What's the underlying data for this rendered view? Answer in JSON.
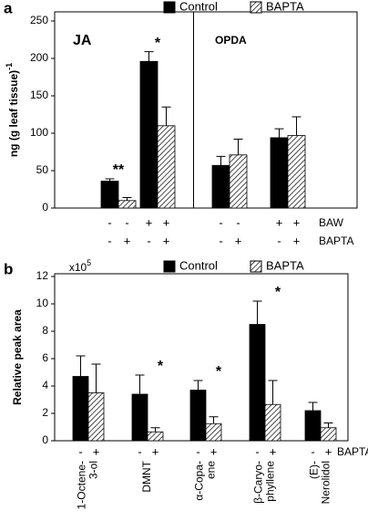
{
  "chart_data": [
    {
      "type": "bar",
      "panel_label": "a",
      "y_label": "ng (g leaf tissue)",
      "y_label_sup": "-1",
      "ylim": [
        0,
        250
      ],
      "yticks": [
        0,
        50,
        100,
        150,
        200,
        250
      ],
      "sections": [
        {
          "title": "JA",
          "groups": [
            0,
            1
          ]
        },
        {
          "title": "OPDA",
          "groups": [
            2,
            3
          ]
        }
      ],
      "series": [
        {
          "name": "Control",
          "pattern": "solid",
          "color": "#000000",
          "values": [
            36,
            196,
            57,
            94
          ],
          "errors": [
            3,
            13,
            12,
            12
          ]
        },
        {
          "name": "BAPTA",
          "pattern": "hatch",
          "color": "#000000",
          "values": [
            10,
            110,
            71,
            97
          ],
          "errors": [
            4,
            25,
            21,
            25
          ]
        }
      ],
      "annotations": [
        {
          "text": "**",
          "group": 0
        },
        {
          "text": "*",
          "group": 1
        }
      ],
      "factor_rows": [
        {
          "name": "BAW",
          "signs": [
            "-",
            "-",
            "+",
            "+",
            "-",
            "-",
            "+",
            "+"
          ]
        },
        {
          "name": "BAPTA",
          "signs": [
            "-",
            "+",
            "-",
            "+",
            "-",
            "+",
            "-",
            "+"
          ]
        }
      ]
    },
    {
      "type": "bar",
      "panel_label": "b",
      "y_label": "Relative peak area",
      "multiplier": "x10",
      "multiplier_sup": "5",
      "ylim": [
        0,
        12
      ],
      "yticks": [
        0,
        2,
        4,
        6,
        8,
        10,
        12
      ],
      "categories": [
        [
          "1-Octene-",
          "3-ol"
        ],
        [
          "DMNT"
        ],
        [
          "α-Copa-",
          "ene"
        ],
        [
          "β-Caryo-",
          "phyllene"
        ],
        [
          "(E)-",
          "Nerolidol"
        ]
      ],
      "series": [
        {
          "name": "Control",
          "pattern": "solid",
          "color": "#000000",
          "values": [
            4.7,
            3.4,
            3.7,
            8.5,
            2.2
          ],
          "errors": [
            1.5,
            1.4,
            0.7,
            1.7,
            0.6
          ]
        },
        {
          "name": "BAPTA",
          "pattern": "hatch",
          "color": "#000000",
          "values": [
            3.5,
            0.65,
            1.25,
            2.65,
            0.95
          ],
          "errors": [
            2.1,
            0.3,
            0.5,
            1.75,
            0.35
          ]
        }
      ],
      "annotations": [
        {
          "text": "*",
          "group": 1
        },
        {
          "text": "*",
          "group": 2
        },
        {
          "text": "*",
          "group": 3
        }
      ],
      "factor_rows": [
        {
          "name": "BAPTA",
          "signs": [
            "-",
            "+",
            "-",
            "+",
            "-",
            "+",
            "-",
            "+",
            "-",
            "+"
          ]
        }
      ]
    }
  ]
}
